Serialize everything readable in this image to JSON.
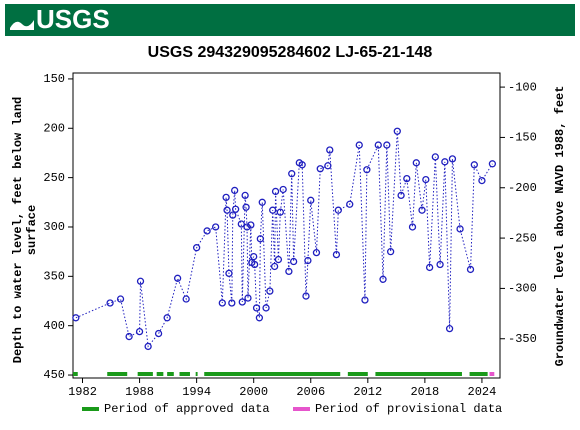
{
  "header": {
    "logo": "USGS"
  },
  "chart_data": {
    "type": "scatter",
    "title": "USGS 294329095284602 LJ-65-21-148",
    "y_label_lines": [
      "Depth to water level, feet below land",
      "surface"
    ],
    "y2_label": "Groundwater level above NAVD 1988, feet",
    "xlim": [
      1981,
      2025.9
    ],
    "xticks": [
      1982,
      1988,
      1994,
      2000,
      2006,
      2012,
      2018,
      2024
    ],
    "ylim": [
      144,
      453
    ],
    "y_inverted": true,
    "yticks": [
      150,
      200,
      250,
      300,
      350,
      400,
      450
    ],
    "y2lim": [
      -86,
      -389
    ],
    "y2ticks": [
      -100,
      -150,
      -200,
      -250,
      -300,
      -350
    ],
    "series": [
      {
        "name": "Depth to water level",
        "color": "#1f1fbf",
        "line_style": "dotted",
        "x": [
          1981.3,
          1984.9,
          1986.0,
          1986.9,
          1988.0,
          1988.1,
          1988.9,
          1990.0,
          1990.9,
          1992.0,
          1992.9,
          1994.0,
          1995.1,
          1996.0,
          1996.7,
          1997.1,
          1997.2,
          1997.4,
          1997.7,
          1997.8,
          1998.0,
          1998.1,
          1998.7,
          1998.8,
          1999.1,
          1999.2,
          1999.3,
          1999.4,
          1999.7,
          1999.8,
          2000.0,
          2000.1,
          2000.3,
          2000.6,
          2000.7,
          2000.9,
          2001.3,
          2001.7,
          2002.0,
          2002.2,
          2002.3,
          2002.6,
          2002.8,
          2003.1,
          2003.7,
          2004.0,
          2004.2,
          2004.8,
          2005.1,
          2005.5,
          2005.7,
          2006.0,
          2006.6,
          2007.0,
          2007.8,
          2008.0,
          2008.7,
          2008.9,
          2010.1,
          2011.1,
          2011.7,
          2011.9,
          2013.1,
          2013.6,
          2014.0,
          2014.4,
          2015.1,
          2015.5,
          2016.1,
          2016.7,
          2017.1,
          2017.7,
          2018.1,
          2018.5,
          2019.1,
          2019.6,
          2020.1,
          2020.6,
          2020.9,
          2021.7,
          2022.8,
          2023.2,
          2024.0,
          2025.1
        ],
        "values": [
          392,
          377,
          373,
          411,
          406,
          355,
          421,
          408,
          392,
          352,
          373,
          321,
          304,
          300,
          377,
          270,
          283,
          347,
          377,
          288,
          263,
          282,
          297,
          376,
          268,
          280,
          300,
          372,
          298,
          336,
          330,
          338,
          382,
          392,
          312,
          275,
          382,
          365,
          283,
          340,
          264,
          333,
          285,
          262,
          345,
          246,
          335,
          235,
          237,
          370,
          334,
          273,
          326,
          241,
          238,
          222,
          328,
          283,
          277,
          217,
          374,
          242,
          217,
          353,
          217,
          325,
          203,
          268,
          251,
          300,
          235,
          283,
          252,
          341,
          229,
          338,
          234,
          403,
          231,
          302,
          343,
          237,
          253,
          236
        ]
      }
    ],
    "periods": [
      {
        "name": "Period of approved data",
        "color": "#1a9a1a",
        "ranges": [
          [
            1981,
            1981.5
          ],
          [
            1984.6,
            1986.7
          ],
          [
            1987.8,
            1989.4
          ],
          [
            1989.8,
            1990.5
          ],
          [
            1990.9,
            1991.6
          ],
          [
            1992.2,
            1993.3
          ],
          [
            1993.9,
            1994.1
          ],
          [
            1994.8,
            2009.1
          ],
          [
            2009.9,
            2012.0
          ],
          [
            2012.8,
            2021.9
          ],
          [
            2022.7,
            2024.6
          ]
        ]
      },
      {
        "name": "Period of provisional data",
        "color": "#e655cc",
        "ranges": [
          [
            2024.8,
            2025.3
          ]
        ]
      }
    ]
  }
}
